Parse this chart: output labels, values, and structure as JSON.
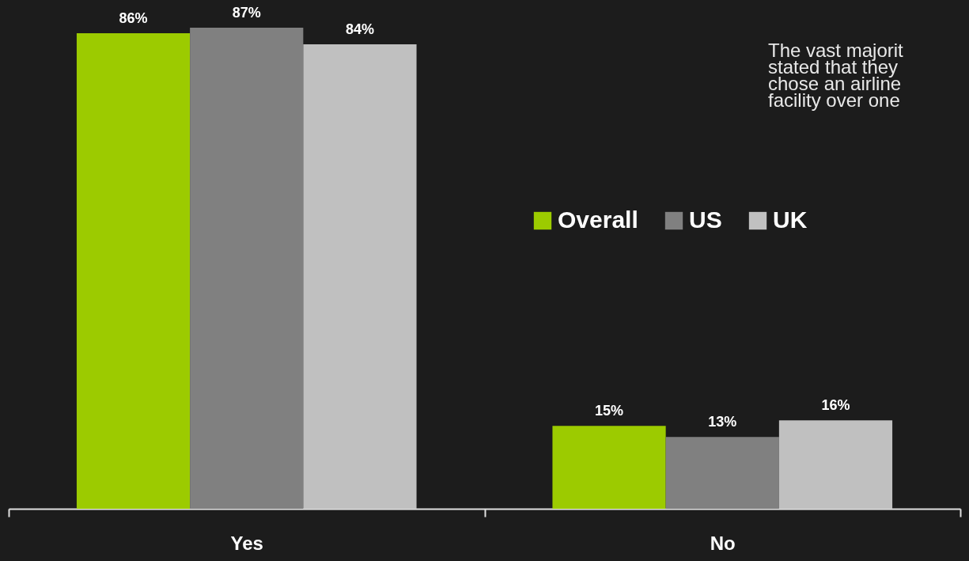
{
  "chart_data": {
    "type": "bar",
    "categories": [
      "Yes",
      "No"
    ],
    "series": [
      {
        "name": "Overall",
        "color": "#9ccb00",
        "values": [
          86,
          15
        ],
        "value_labels": [
          "86%",
          "15%"
        ]
      },
      {
        "name": "US",
        "color": "#808080",
        "values": [
          87,
          13
        ],
        "value_labels": [
          "87%",
          "13%"
        ]
      },
      {
        "name": "UK",
        "color": "#c0c0c0",
        "values": [
          84,
          16
        ],
        "value_labels": [
          "84%",
          "16%"
        ]
      }
    ],
    "legend": "top right",
    "grid": false,
    "tick_labels": "x",
    "annotations": [
      "The vast majorit",
      "stated that they",
      "chose an airline",
      "facility over one"
    ]
  }
}
